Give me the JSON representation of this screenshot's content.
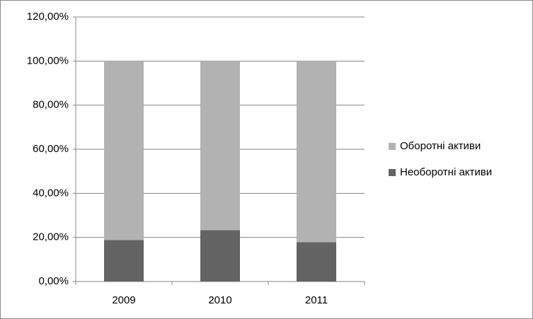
{
  "chart_data": {
    "type": "stacked-bar",
    "categories": [
      "2009",
      "2010",
      "2011"
    ],
    "series": [
      {
        "name": "Необоротні активи",
        "color": "#636363",
        "values": [
          18.8,
          23.3,
          17.8
        ]
      },
      {
        "name": "Оборотні активи",
        "color": "#b2b2b2",
        "values": [
          81.2,
          76.7,
          82.2
        ]
      }
    ],
    "ylim": [
      0,
      120
    ],
    "yticks": [
      {
        "value": 0,
        "label": "0,00%"
      },
      {
        "value": 20,
        "label": "20,00%"
      },
      {
        "value": 40,
        "label": "40,00%"
      },
      {
        "value": 60,
        "label": "60,00%"
      },
      {
        "value": 80,
        "label": "80,00%"
      },
      {
        "value": 100,
        "label": "100,00%"
      },
      {
        "value": 120,
        "label": "120,00%"
      }
    ],
    "grid": true,
    "legend": "right"
  }
}
